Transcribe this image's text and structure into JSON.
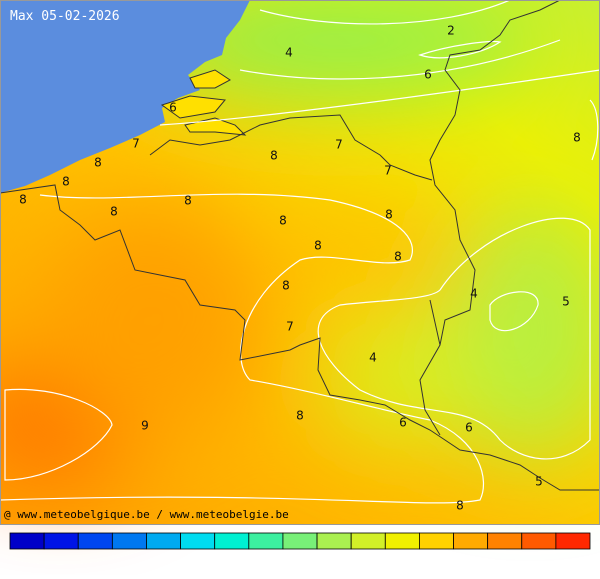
{
  "title": "Max 05-02-2026",
  "credit": "@ www.meteobelgique.be / www.meteobelgie.be",
  "contour_labels": [
    2,
    4,
    6,
    6,
    8,
    7,
    8,
    7,
    8,
    7,
    8,
    8,
    8,
    8,
    8,
    8,
    8,
    8,
    4,
    5,
    8,
    7,
    4,
    9,
    8,
    6,
    6,
    5,
    8
  ]
}
